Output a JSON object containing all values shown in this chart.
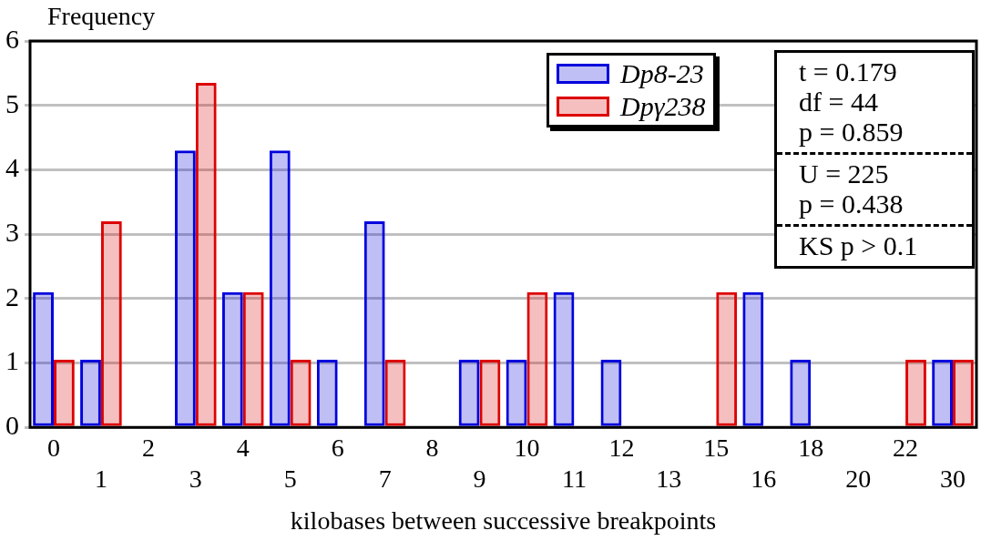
{
  "chart_data": {
    "type": "bar",
    "ylabel": "Frequency",
    "xlabel": "kilobases between successive breakpoints",
    "categories": [
      "0",
      "1",
      "2",
      "3",
      "4",
      "5",
      "6",
      "7",
      "8",
      "9",
      "10",
      "11",
      "12",
      "13",
      "15",
      "16",
      "18",
      "20",
      "22",
      "30"
    ],
    "series": [
      {
        "name": "Dp8-23",
        "color": "#0000dd",
        "values": [
          2.1,
          1.05,
          0,
          4.3,
          2.1,
          4.3,
          1.05,
          3.2,
          0,
          1.05,
          1.05,
          2.1,
          1.05,
          0,
          0,
          2.1,
          1.05,
          0,
          0,
          1.05
        ]
      },
      {
        "name": "Dpγ238",
        "color": "#dd0000",
        "values": [
          1.05,
          3.2,
          0,
          5.35,
          2.1,
          1.05,
          0,
          1.05,
          0,
          1.05,
          2.1,
          0,
          0,
          0,
          2.1,
          0,
          0,
          0,
          1.05,
          1.05
        ]
      }
    ],
    "ylim": [
      0,
      6
    ],
    "yticks": [
      0,
      1,
      2,
      3,
      4,
      5,
      6
    ],
    "grid": "y",
    "legend": "top right",
    "annotations": [
      "t = 0.179\ndf = 44\np = 0.859",
      "U = 225\np = 0.438",
      "KS p > 0.1"
    ]
  }
}
